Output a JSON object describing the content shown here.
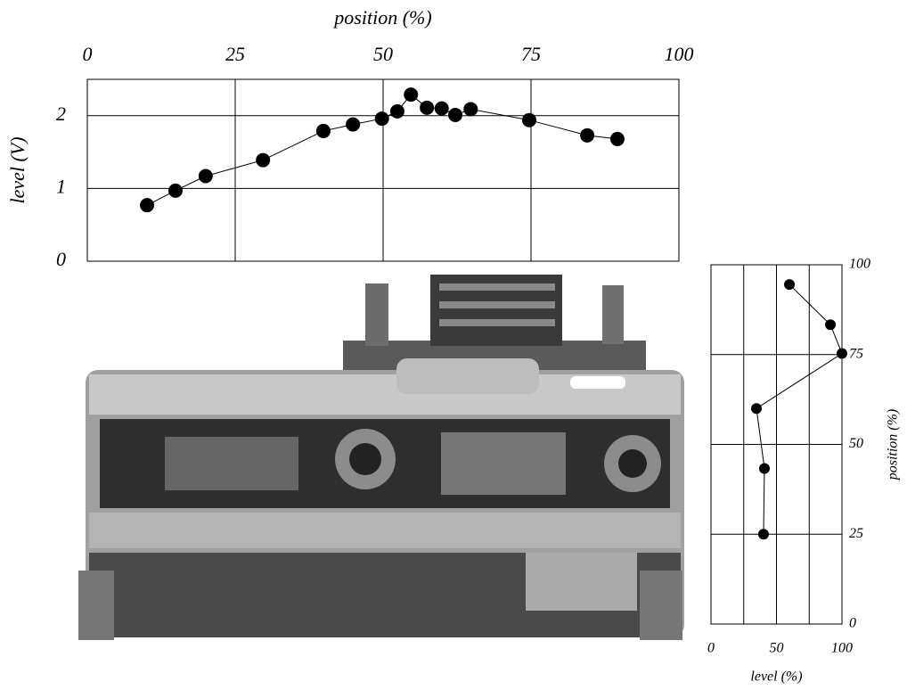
{
  "chart_data": [
    {
      "type": "line",
      "xlabel": "position (%)",
      "ylabel": "level (V)",
      "x": [
        10.1,
        14.9,
        20.0,
        29.7,
        39.9,
        44.9,
        49.8,
        52.4,
        54.7,
        57.4,
        59.9,
        62.2,
        64.8,
        74.7,
        84.5,
        89.6
      ],
      "values": [
        0.77,
        0.97,
        1.17,
        1.39,
        1.79,
        1.88,
        1.96,
        2.06,
        2.29,
        2.11,
        2.1,
        2.01,
        2.09,
        1.94,
        1.73,
        1.68
      ],
      "color": "#000000",
      "xlim": [
        0,
        100
      ],
      "xticks": [
        0,
        25,
        50,
        75,
        100
      ],
      "ylim": [
        0,
        2.5
      ],
      "yticks": [
        0,
        1,
        2
      ],
      "x_axis_side": "top",
      "y_axis_side": "left",
      "grid": true
    },
    {
      "type": "line",
      "xlabel": "level (%)",
      "ylabel": "position (%)",
      "x": [
        59.9,
        91.2,
        100,
        34.7,
        40.8,
        40.1
      ],
      "values": [
        94.5,
        83.3,
        75.3,
        60,
        43.3,
        25
      ],
      "color": "#000000",
      "xlim": [
        0,
        100
      ],
      "xticks": [
        0,
        50,
        100
      ],
      "x_minor_ticks": [
        25,
        75
      ],
      "ylim": [
        0,
        100
      ],
      "yticks": [
        0,
        25,
        50,
        75,
        100
      ],
      "x_axis_side": "bottom",
      "y_axis_side": "right",
      "grid": true
    }
  ]
}
